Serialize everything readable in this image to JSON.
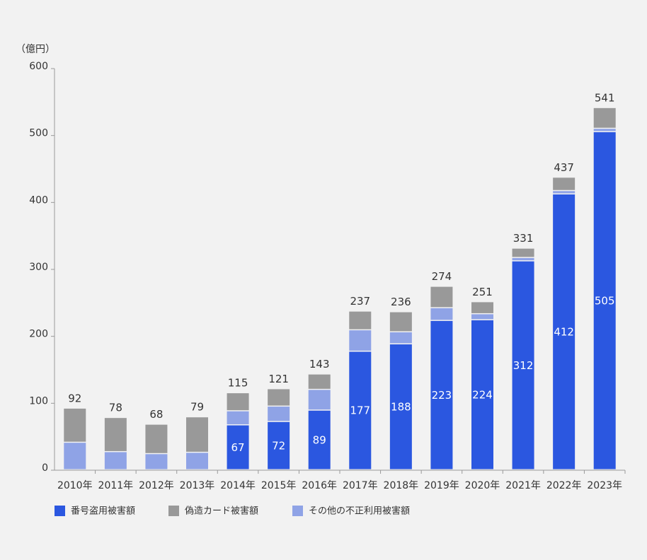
{
  "chart_data": {
    "type": "stacked-bar",
    "unit_label": "（億円）",
    "categories": [
      "2010年",
      "2011年",
      "2012年",
      "2013年",
      "2014年",
      "2015年",
      "2016年",
      "2017年",
      "2018年",
      "2019年",
      "2020年",
      "2021年",
      "2022年",
      "2023年"
    ],
    "series": [
      {
        "name": "番号盗用被害額",
        "color": "#2b57e0",
        "values": [
          null,
          null,
          null,
          null,
          67,
          72,
          89,
          177,
          188,
          223,
          224,
          312,
          412,
          505
        ]
      },
      {
        "name": "その他の不正利用被害額",
        "color": "#8fa3e6",
        "values": [
          41,
          27,
          24,
          26,
          21,
          23,
          31,
          32,
          18,
          19,
          9,
          5,
          5,
          5
        ]
      },
      {
        "name": "偽造カード被害額",
        "color": "#999999",
        "values": [
          51,
          51,
          44,
          53,
          27,
          26,
          23,
          28,
          30,
          32,
          18,
          14,
          20,
          31
        ]
      }
    ],
    "totals": [
      92,
      78,
      68,
      79,
      115,
      121,
      143,
      237,
      236,
      274,
      251,
      331,
      437,
      541
    ],
    "ylim": [
      0,
      600
    ],
    "yticks": [
      0,
      100,
      200,
      300,
      400,
      500,
      600
    ],
    "legend_order": [
      0,
      2,
      1
    ]
  }
}
